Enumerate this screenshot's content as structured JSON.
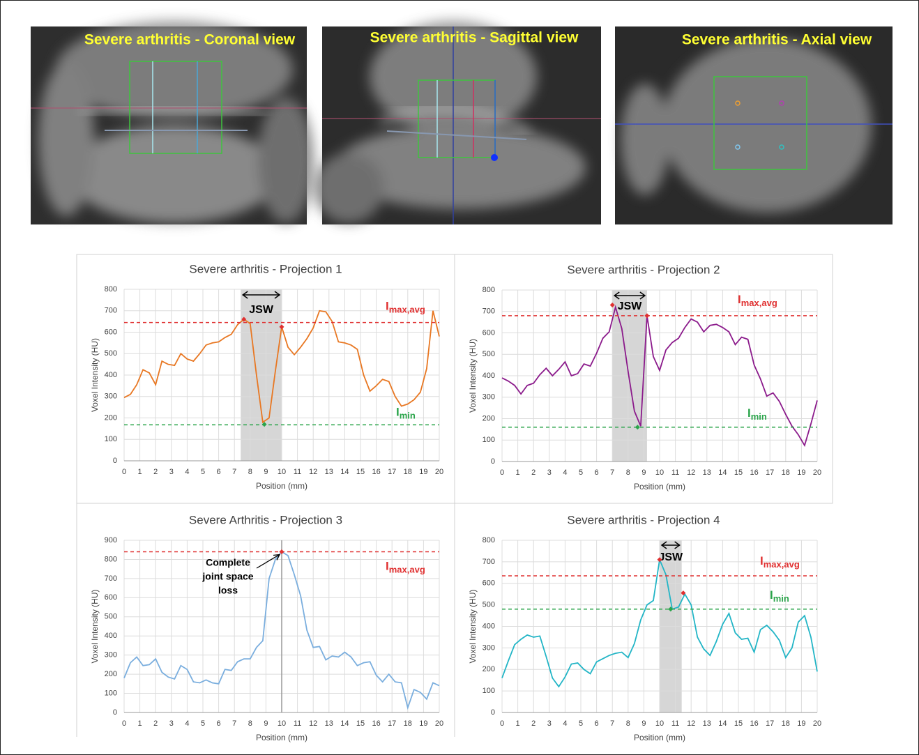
{
  "images": [
    {
      "caption": "Severe arthritis - Coronal view"
    },
    {
      "caption": "Severe arthritis - Sagittal view"
    },
    {
      "caption": "Severe arthritis - Axial view"
    }
  ],
  "chart_data": [
    {
      "type": "line",
      "title": "Severe arthritis - Projection 1",
      "xlabel": "Position (mm)",
      "ylabel": "Voxel Intensity (HU)",
      "color": "#e87722",
      "x": [
        0,
        0.4,
        0.8,
        1.2,
        1.6,
        2,
        2.4,
        2.8,
        3.2,
        3.6,
        4,
        4.4,
        4.8,
        5.2,
        5.6,
        6,
        6.4,
        6.8,
        7.2,
        7.6,
        8,
        8.4,
        8.8,
        9.2,
        9.6,
        10,
        10.4,
        10.8,
        11.2,
        11.6,
        12,
        12.4,
        12.8,
        13.2,
        13.6,
        14,
        14.4,
        14.8,
        15.2,
        15.6,
        16,
        16.4,
        16.8,
        17.2,
        17.6,
        18,
        18.4,
        18.8,
        19.2,
        19.6,
        20
      ],
      "values": [
        295,
        310,
        355,
        425,
        410,
        355,
        465,
        450,
        445,
        500,
        475,
        465,
        500,
        540,
        550,
        555,
        575,
        590,
        635,
        660,
        640,
        400,
        180,
        200,
        420,
        625,
        530,
        495,
        530,
        570,
        620,
        700,
        695,
        650,
        555,
        550,
        540,
        520,
        400,
        325,
        350,
        380,
        370,
        300,
        255,
        265,
        285,
        320,
        430,
        700,
        580
      ],
      "xlim": [
        0,
        20
      ],
      "xticks": [
        0,
        1,
        2,
        3,
        4,
        5,
        6,
        7,
        8,
        9,
        10,
        11,
        12,
        13,
        14,
        15,
        16,
        17,
        18,
        19,
        20
      ],
      "ylim": [
        0,
        800
      ],
      "yticks": [
        0,
        100,
        200,
        300,
        400,
        500,
        600,
        700,
        800
      ],
      "grid": true,
      "span": [
        7.4,
        10
      ],
      "span_label": "JSW",
      "hlines": [
        {
          "value": 645,
          "color": "#e03030",
          "label": "I",
          "sub": "max,avg"
        },
        {
          "value": 168,
          "color": "#2aa44a",
          "label": "I",
          "sub": "min"
        }
      ],
      "markers": [
        {
          "x": 7.6,
          "y": 660,
          "color": "#e03030"
        },
        {
          "x": 10,
          "y": 625,
          "color": "#e03030"
        },
        {
          "x": 8.9,
          "y": 170,
          "color": "#2aa44a"
        }
      ]
    },
    {
      "type": "line",
      "title": "Severe arthritis - Projection 2",
      "xlabel": "Position (mm)",
      "ylabel": "Voxel Intensity (HU)",
      "color": "#8b1a8b",
      "x": [
        0,
        0.4,
        0.8,
        1.2,
        1.6,
        2,
        2.4,
        2.8,
        3.2,
        3.6,
        4,
        4.4,
        4.8,
        5.2,
        5.6,
        6,
        6.4,
        6.8,
        7.2,
        7.6,
        8,
        8.4,
        8.8,
        9.2,
        9.6,
        10,
        10.4,
        10.8,
        11.2,
        11.6,
        12,
        12.4,
        12.8,
        13.2,
        13.6,
        14,
        14.4,
        14.8,
        15.2,
        15.6,
        16,
        16.4,
        16.8,
        17.2,
        17.6,
        18,
        18.4,
        18.8,
        19.2,
        19.6,
        20
      ],
      "values": [
        390,
        375,
        355,
        315,
        355,
        365,
        405,
        435,
        400,
        430,
        465,
        400,
        410,
        455,
        445,
        505,
        575,
        605,
        720,
        620,
        420,
        235,
        165,
        680,
        490,
        425,
        520,
        555,
        575,
        625,
        665,
        650,
        605,
        635,
        640,
        625,
        605,
        545,
        580,
        570,
        450,
        385,
        305,
        320,
        280,
        220,
        165,
        125,
        75,
        175,
        285
      ],
      "xlim": [
        0,
        20
      ],
      "xticks": [
        0,
        1,
        2,
        3,
        4,
        5,
        6,
        7,
        8,
        9,
        10,
        11,
        12,
        13,
        14,
        15,
        16,
        17,
        18,
        19,
        20
      ],
      "ylim": [
        0,
        800
      ],
      "yticks": [
        0,
        100,
        200,
        300,
        400,
        500,
        600,
        700,
        800
      ],
      "grid": true,
      "span": [
        7,
        9.2
      ],
      "span_label": "JSW",
      "hlines": [
        {
          "value": 680,
          "color": "#e03030",
          "label": "I",
          "sub": "max,avg"
        },
        {
          "value": 160,
          "color": "#2aa44a",
          "label": "I",
          "sub": "min"
        }
      ],
      "markers": [
        {
          "x": 7,
          "y": 730,
          "color": "#e03030"
        },
        {
          "x": 9.2,
          "y": 680,
          "color": "#e03030"
        },
        {
          "x": 8.6,
          "y": 160,
          "color": "#2aa44a"
        }
      ]
    },
    {
      "type": "line",
      "title": "Severe Arthritis - Projection 3",
      "xlabel": "Position (mm)",
      "ylabel": "Voxel Intensity (HU)",
      "color": "#7aaede",
      "x": [
        0,
        0.4,
        0.8,
        1.2,
        1.6,
        2,
        2.4,
        2.8,
        3.2,
        3.6,
        4,
        4.4,
        4.8,
        5.2,
        5.6,
        6,
        6.4,
        6.8,
        7.2,
        7.6,
        8,
        8.4,
        8.8,
        9.2,
        9.6,
        10,
        10.4,
        10.8,
        11.2,
        11.6,
        12,
        12.4,
        12.8,
        13.2,
        13.6,
        14,
        14.4,
        14.8,
        15.2,
        15.6,
        16,
        16.4,
        16.8,
        17.2,
        17.6,
        18,
        18.4,
        18.8,
        19.2,
        19.6,
        20
      ],
      "values": [
        180,
        260,
        290,
        245,
        250,
        280,
        210,
        185,
        175,
        245,
        225,
        160,
        155,
        170,
        155,
        150,
        225,
        220,
        265,
        280,
        280,
        340,
        375,
        700,
        800,
        840,
        820,
        720,
        610,
        430,
        340,
        345,
        275,
        295,
        290,
        315,
        290,
        245,
        260,
        265,
        195,
        160,
        200,
        160,
        155,
        25,
        120,
        105,
        70,
        155,
        140
      ],
      "xlim": [
        0,
        20
      ],
      "xticks": [
        0,
        1,
        2,
        3,
        4,
        5,
        6,
        7,
        8,
        9,
        10,
        11,
        12,
        13,
        14,
        15,
        16,
        17,
        18,
        19,
        20
      ],
      "ylim": [
        0,
        900
      ],
      "yticks": [
        0,
        100,
        200,
        300,
        400,
        500,
        600,
        700,
        800,
        900
      ],
      "grid": true,
      "vline": 10,
      "annotation_lines": [
        "Complete",
        "joint space",
        "loss"
      ],
      "hlines": [
        {
          "value": 840,
          "color": "#e03030",
          "label": "I",
          "sub": "max,avg"
        }
      ],
      "markers": [
        {
          "x": 10,
          "y": 840,
          "color": "#e03030"
        }
      ]
    },
    {
      "type": "line",
      "title": "Severe arthritis - Projection 4",
      "xlabel": "Position (mm)",
      "ylabel": "Voxel Intensity (HU)",
      "color": "#22b5c6",
      "x": [
        0,
        0.4,
        0.8,
        1.2,
        1.6,
        2,
        2.4,
        2.8,
        3.2,
        3.6,
        4,
        4.4,
        4.8,
        5.2,
        5.6,
        6,
        6.4,
        6.8,
        7.2,
        7.6,
        8,
        8.4,
        8.8,
        9.2,
        9.6,
        10,
        10.4,
        10.8,
        11.2,
        11.6,
        12,
        12.4,
        12.8,
        13.2,
        13.6,
        14,
        14.4,
        14.8,
        15.2,
        15.6,
        16,
        16.4,
        16.8,
        17.2,
        17.6,
        18,
        18.4,
        18.8,
        19.2,
        19.6,
        20
      ],
      "values": [
        160,
        240,
        315,
        340,
        360,
        350,
        355,
        260,
        160,
        120,
        165,
        225,
        230,
        200,
        180,
        235,
        250,
        265,
        275,
        280,
        255,
        320,
        430,
        500,
        520,
        710,
        640,
        480,
        490,
        550,
        500,
        350,
        295,
        265,
        330,
        410,
        460,
        370,
        340,
        345,
        280,
        385,
        405,
        375,
        335,
        255,
        300,
        420,
        450,
        350,
        190
      ],
      "xlim": [
        0,
        20
      ],
      "xticks": [
        0,
        1,
        2,
        3,
        4,
        5,
        6,
        7,
        8,
        9,
        10,
        11,
        12,
        13,
        14,
        15,
        16,
        17,
        18,
        19,
        20
      ],
      "ylim": [
        0,
        800
      ],
      "yticks": [
        0,
        100,
        200,
        300,
        400,
        500,
        600,
        700,
        800
      ],
      "grid": true,
      "span": [
        10,
        11.4
      ],
      "span_label": "JSW",
      "hlines": [
        {
          "value": 635,
          "color": "#e03030",
          "label": "I",
          "sub": "max,avg"
        },
        {
          "value": 480,
          "color": "#2aa44a",
          "label": "I",
          "sub": "min"
        }
      ],
      "markers": [
        {
          "x": 10,
          "y": 710,
          "color": "#e03030"
        },
        {
          "x": 11.5,
          "y": 555,
          "color": "#e03030"
        },
        {
          "x": 10.7,
          "y": 480,
          "color": "#2aa44a"
        }
      ]
    }
  ]
}
